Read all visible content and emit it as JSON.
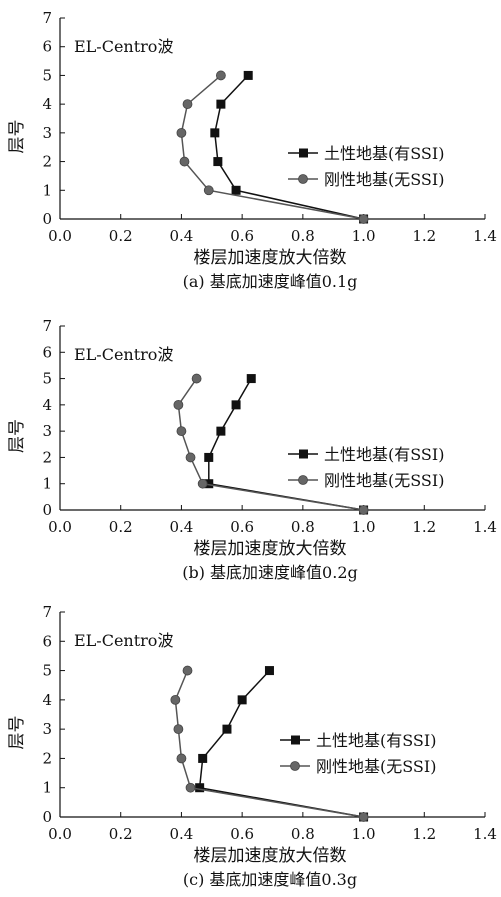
{
  "chart_data": [
    {
      "type": "line",
      "title": "EL-Centro波",
      "xlabel": "楼层加速度放大倍数",
      "ylabel": "层号",
      "caption": "(a)  基底加速度峰值0.1g",
      "xlim": [
        0,
        1.4
      ],
      "ylim": [
        0,
        7
      ],
      "xticks": [
        "0.0",
        "0.2",
        "0.4",
        "0.6",
        "0.8",
        "1.0",
        "1.2",
        "1.4"
      ],
      "yticks": [
        "0",
        "1",
        "2",
        "3",
        "4",
        "5",
        "6",
        "7"
      ],
      "legend_position": "right",
      "series": [
        {
          "name": "土性地基(有SSI)",
          "marker": "square",
          "x": [
            1.0,
            0.58,
            0.52,
            0.51,
            0.53,
            0.62
          ],
          "y": [
            0,
            1,
            2,
            3,
            4,
            5
          ]
        },
        {
          "name": "刚性地基(无SSI)",
          "marker": "circle",
          "x": [
            1.0,
            0.49,
            0.41,
            0.4,
            0.42,
            0.53
          ],
          "y": [
            0,
            1,
            2,
            3,
            4,
            5
          ]
        }
      ]
    },
    {
      "type": "line",
      "title": "EL-Centro波",
      "xlabel": "楼层加速度放大倍数",
      "ylabel": "层号",
      "caption": "(b)  基底加速度峰值0.2g",
      "xlim": [
        0,
        1.4
      ],
      "ylim": [
        0,
        7
      ],
      "xticks": [
        "0.0",
        "0.2",
        "0.4",
        "0.6",
        "0.8",
        "1.0",
        "1.2",
        "1.4"
      ],
      "yticks": [
        "0",
        "1",
        "2",
        "3",
        "4",
        "5",
        "6",
        "7"
      ],
      "legend_position": "right",
      "series": [
        {
          "name": "土性地基(有SSI)",
          "marker": "square",
          "x": [
            1.0,
            0.49,
            0.49,
            0.53,
            0.58,
            0.63
          ],
          "y": [
            0,
            1,
            2,
            3,
            4,
            5
          ]
        },
        {
          "name": "刚性地基(无SSI)",
          "marker": "circle",
          "x": [
            1.0,
            0.47,
            0.43,
            0.4,
            0.39,
            0.45
          ],
          "y": [
            0,
            1,
            2,
            3,
            4,
            5
          ]
        }
      ]
    },
    {
      "type": "line",
      "title": "EL-Centro波",
      "xlabel": "楼层加速度放大倍数",
      "ylabel": "层号",
      "caption": "(c)  基底加速度峰值0.3g",
      "xlim": [
        0,
        1.4
      ],
      "ylim": [
        0,
        7
      ],
      "xticks": [
        "0.0",
        "0.2",
        "0.4",
        "0.6",
        "0.8",
        "1.0",
        "1.2",
        "1.4"
      ],
      "yticks": [
        "0",
        "1",
        "2",
        "3",
        "4",
        "5",
        "6",
        "7"
      ],
      "legend_position": "right",
      "series": [
        {
          "name": "土性地基(有SSI)",
          "marker": "square",
          "x": [
            1.0,
            0.46,
            0.47,
            0.55,
            0.6,
            0.69
          ],
          "y": [
            0,
            1,
            2,
            3,
            4,
            5
          ]
        },
        {
          "name": "刚性地基(无SSI)",
          "marker": "circle",
          "x": [
            1.0,
            0.43,
            0.4,
            0.39,
            0.38,
            0.42
          ],
          "y": [
            0,
            1,
            2,
            3,
            4,
            5
          ]
        }
      ]
    }
  ]
}
